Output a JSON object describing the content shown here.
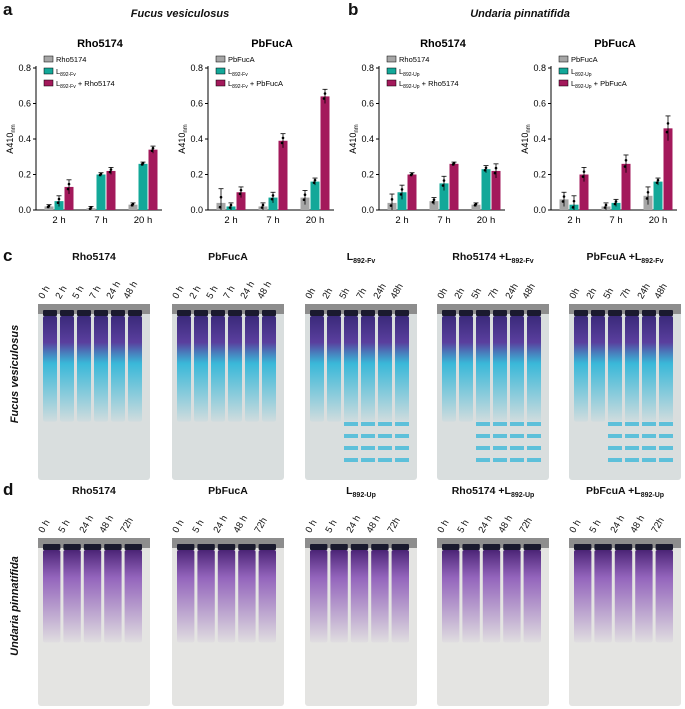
{
  "panels": {
    "a": "a",
    "b": "b",
    "c": "c",
    "d": "d"
  },
  "organisms": {
    "fucus": "Fucus vesiculosus",
    "undaria": "Undaria pinnatifida"
  },
  "colors": {
    "grey": "#a6a6a6",
    "teal": "#13a899",
    "magenta": "#a3195b",
    "fv_gel": "#28b4d8",
    "up_gel": "#8b57b8"
  },
  "chart_data": [
    {
      "type": "bar",
      "panel": "a",
      "title": "Rho5174",
      "ylabel": "A410 nm",
      "ylim": [
        0,
        0.8
      ],
      "yticks": [
        "0.0",
        "0.2",
        "0.4",
        "0.6",
        "0.8"
      ],
      "categories": [
        "2 h",
        "7 h",
        "20 h"
      ],
      "legend": [
        "Rho5174",
        "L892-Fv",
        "L892-Fv + Rho5174"
      ],
      "series": [
        {
          "name": "Rho5174",
          "values": [
            0.02,
            0.01,
            0.03
          ],
          "err": [
            0.01,
            0.01,
            0.01
          ]
        },
        {
          "name": "L892-Fv",
          "values": [
            0.05,
            0.2,
            0.26
          ],
          "err": [
            0.03,
            0.01,
            0.01
          ]
        },
        {
          "name": "L892-Fv + Rho5174",
          "values": [
            0.13,
            0.22,
            0.34
          ],
          "err": [
            0.04,
            0.02,
            0.02
          ]
        }
      ]
    },
    {
      "type": "bar",
      "panel": "a",
      "title": "PbFucA",
      "ylabel": "A410 nm",
      "ylim": [
        0,
        0.8
      ],
      "yticks": [
        "0.0",
        "0.2",
        "0.4",
        "0.6",
        "0.8"
      ],
      "categories": [
        "2 h",
        "7 h",
        "20 h"
      ],
      "legend": [
        "PbFucA",
        "L892-Fv",
        "L892-Fv + PbFucA"
      ],
      "series": [
        {
          "name": "PbFucA",
          "values": [
            0.04,
            0.02,
            0.07
          ],
          "err": [
            0.08,
            0.02,
            0.04
          ]
        },
        {
          "name": "L892-Fv",
          "values": [
            0.02,
            0.07,
            0.16
          ],
          "err": [
            0.02,
            0.03,
            0.02
          ]
        },
        {
          "name": "L892-Fv + PbFucA",
          "values": [
            0.1,
            0.39,
            0.64
          ],
          "err": [
            0.03,
            0.04,
            0.04
          ]
        }
      ]
    },
    {
      "type": "bar",
      "panel": "b",
      "title": "Rho5174",
      "ylabel": "A410 nm",
      "ylim": [
        0,
        0.8
      ],
      "yticks": [
        "0.0",
        "0.2",
        "0.4",
        "0.6",
        "0.8"
      ],
      "categories": [
        "2 h",
        "7 h",
        "20 h"
      ],
      "legend": [
        "Rho5174",
        "L892-Up",
        "L892-Up + Rho5174"
      ],
      "series": [
        {
          "name": "Rho5174",
          "values": [
            0.04,
            0.05,
            0.03
          ],
          "err": [
            0.05,
            0.02,
            0.01
          ]
        },
        {
          "name": "L892-Up",
          "values": [
            0.1,
            0.15,
            0.23
          ],
          "err": [
            0.04,
            0.04,
            0.02
          ]
        },
        {
          "name": "L892-Up + Rho5174",
          "values": [
            0.2,
            0.26,
            0.22
          ],
          "err": [
            0.01,
            0.01,
            0.04
          ]
        }
      ]
    },
    {
      "type": "bar",
      "panel": "b",
      "title": "PbFucA",
      "ylabel": "A410 nm",
      "ylim": [
        0,
        0.8
      ],
      "yticks": [
        "0.0",
        "0.2",
        "0.4",
        "0.6",
        "0.8"
      ],
      "categories": [
        "2 h",
        "7 h",
        "20 h"
      ],
      "legend": [
        "PbFucA",
        "L892-Up",
        "L892-Up + PbFucA"
      ],
      "series": [
        {
          "name": "PbFucA",
          "values": [
            0.06,
            0.02,
            0.08
          ],
          "err": [
            0.04,
            0.02,
            0.05
          ]
        },
        {
          "name": "L892-Up",
          "values": [
            0.03,
            0.04,
            0.16
          ],
          "err": [
            0.05,
            0.02,
            0.02
          ]
        },
        {
          "name": "L892-Up + PbFucA",
          "values": [
            0.2,
            0.26,
            0.46
          ],
          "err": [
            0.04,
            0.05,
            0.07
          ]
        }
      ]
    }
  ],
  "gels_c": [
    {
      "title": "Rho5174",
      "sub": "",
      "lanes": [
        "0 h",
        "2 h",
        "5 h",
        "7 h",
        "24 h",
        "48 h"
      ]
    },
    {
      "title": "PbFucA",
      "sub": "",
      "lanes": [
        "0 h",
        "2 h",
        "5 h",
        "7 h",
        "24 h",
        "48 h"
      ]
    },
    {
      "title": "L",
      "sub": "892-Fv",
      "lanes": [
        "0h",
        "2h",
        "5h",
        "7h",
        "24h",
        "48h"
      ]
    },
    {
      "title": "Rho5174 +L",
      "sub": "892-Fv",
      "lanes": [
        "0h",
        "2h",
        "5h",
        "7h",
        "24h",
        "48h"
      ]
    },
    {
      "title": "PbFcuA +L",
      "sub": "892-Fv",
      "lanes": [
        "0h",
        "2h",
        "5h",
        "7h",
        "24h",
        "48h"
      ]
    }
  ],
  "gels_d": [
    {
      "title": "Rho5174",
      "sub": "",
      "lanes": [
        "0 h",
        "5 h",
        "24 h",
        "48 h",
        "72h"
      ]
    },
    {
      "title": "PbFucA",
      "sub": "",
      "lanes": [
        "0 h",
        "5 h",
        "24 h",
        "48 h",
        "72h"
      ]
    },
    {
      "title": "L",
      "sub": "892-Up",
      "lanes": [
        "0 h",
        "5 h",
        "24 h",
        "48 h",
        "72h"
      ]
    },
    {
      "title": "Rho5174 +L",
      "sub": "892-Up",
      "lanes": [
        "0 h",
        "5 h",
        "24 h",
        "48 h",
        "72h"
      ]
    },
    {
      "title": "PbFcuA +L",
      "sub": "892-Up",
      "lanes": [
        "0 h",
        "5 h",
        "24 h",
        "48 h",
        "72h"
      ]
    }
  ]
}
